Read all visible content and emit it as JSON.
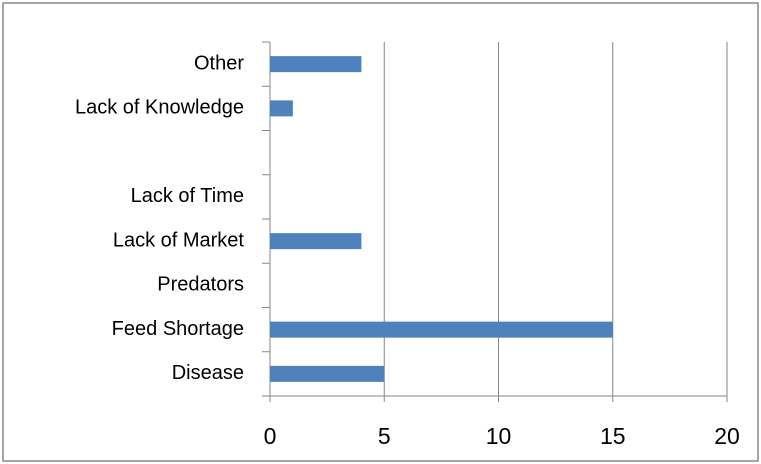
{
  "chart_data": {
    "type": "bar",
    "orientation": "horizontal",
    "categories": [
      "Disease",
      "Feed Shortage",
      "Predators",
      "Lack of Market",
      "Lack of Time",
      null,
      "Lack of Knowledge",
      "Other"
    ],
    "values": [
      5,
      15,
      0,
      4,
      0,
      0,
      1,
      4
    ],
    "color": "#4f81bd",
    "xlim": [
      0,
      20
    ],
    "xticks": [
      0,
      5,
      10,
      15,
      20
    ],
    "grid": true
  }
}
